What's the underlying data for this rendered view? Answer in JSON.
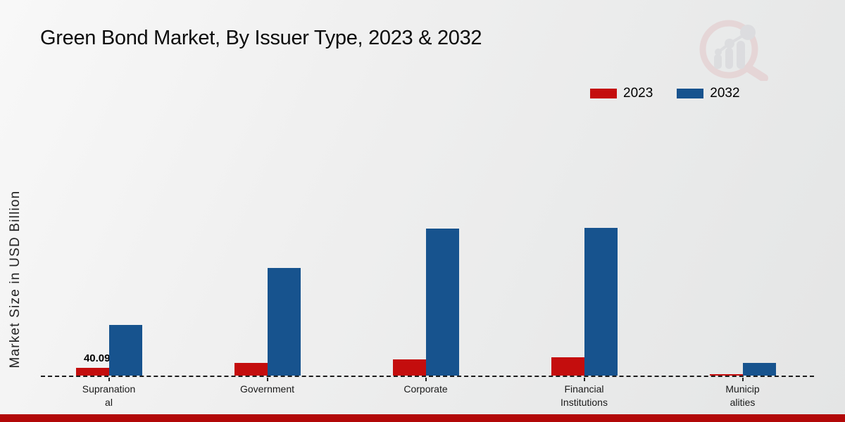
{
  "title": "Green Bond Market, By Issuer Type, 2023 & 2032",
  "y_axis_label": "Market Size in USD Billion",
  "watermark": "market-research-logo",
  "legend": {
    "items": [
      {
        "label": "2023",
        "color": "#c40d0d"
      },
      {
        "label": "2032",
        "color": "#17538e"
      }
    ]
  },
  "colors": {
    "series_2023": "#c40d0d",
    "series_2032": "#17538e",
    "footer_bar": "#b20808",
    "baseline": "#1c1c1c",
    "watermark_pink": "#e3c6c8",
    "watermark_gray": "#d2d3d7"
  },
  "chart_data": {
    "type": "bar",
    "title": "Green Bond Market, By Issuer Type, 2023 & 2032",
    "xlabel": "",
    "ylabel": "Market Size in USD Billion",
    "categories": [
      "Supranational",
      "Government",
      "Corporate",
      "Financial Institutions",
      "Municipalities"
    ],
    "category_label_lines": [
      [
        "Supranation",
        "al"
      ],
      [
        "Government"
      ],
      [
        "Corporate"
      ],
      [
        "Financial",
        "Institutions"
      ],
      [
        "Municip",
        "alities"
      ]
    ],
    "series": [
      {
        "name": "2023",
        "color": "#c40d0d",
        "values": [
          40.09,
          65,
          86,
          97,
          7
        ]
      },
      {
        "name": "2032",
        "color": "#17538e",
        "values": [
          265,
          560,
          765,
          769,
          66
        ]
      }
    ],
    "value_labels": [
      {
        "category_index": 0,
        "series_index": 0,
        "text": "40.09"
      }
    ],
    "ylim": [
      0,
      780
    ],
    "grid": false,
    "y_axis_ticks_visible": false,
    "baseline_style": "dashed",
    "legend_position": "top-right"
  }
}
